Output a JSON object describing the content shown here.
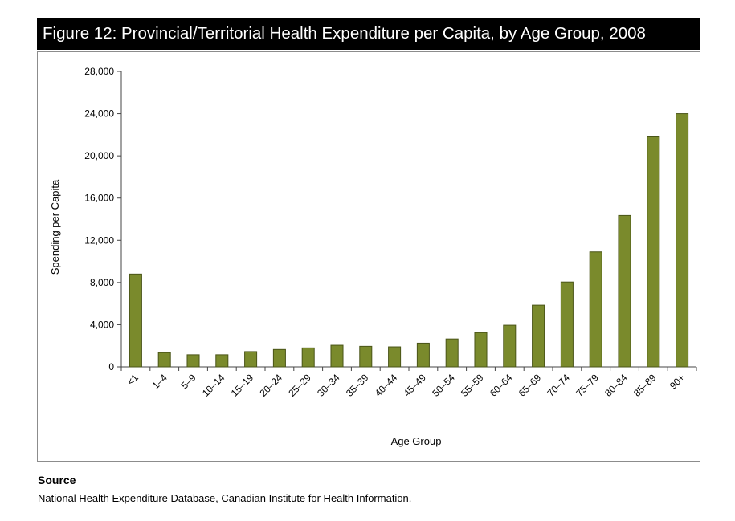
{
  "figure_title": "Figure 12: Provincial/Territorial Health Expenditure per Capita, by Age Group, 2008",
  "source": {
    "heading": "Source",
    "text": "National Health Expenditure Database, Canadian Institute for Health Information."
  },
  "colors": {
    "bar_fill": "#7a8a2c",
    "bar_stroke": "#4a5518",
    "axis": "#444444"
  },
  "chart_data": {
    "type": "bar",
    "title": "Figure 12: Provincial/Territorial Health Expenditure per Capita, by Age Group, 2008",
    "xlabel": "Age Group",
    "ylabel": "Spending per Capita",
    "ylim": [
      0,
      28000
    ],
    "yticks": [
      0,
      4000,
      8000,
      12000,
      16000,
      20000,
      24000,
      28000
    ],
    "ytick_labels": [
      "0",
      "4,000",
      "8,000",
      "12,000",
      "16,000",
      "20,000",
      "24,000",
      "28,000"
    ],
    "categories": [
      "<1",
      "1–4",
      "5–9",
      "10–14",
      "15–19",
      "20–24",
      "25–29",
      "30–34",
      "35–39",
      "40–44",
      "45–49",
      "50–54",
      "55–59",
      "60–64",
      "65–69",
      "70–74",
      "75–79",
      "80–84",
      "85–89",
      "90+"
    ],
    "values": [
      8800,
      1350,
      1150,
      1150,
      1450,
      1650,
      1800,
      2050,
      1950,
      1900,
      2250,
      2650,
      3250,
      3950,
      5850,
      8050,
      10900,
      14350,
      21800,
      24000
    ],
    "grid": false
  }
}
